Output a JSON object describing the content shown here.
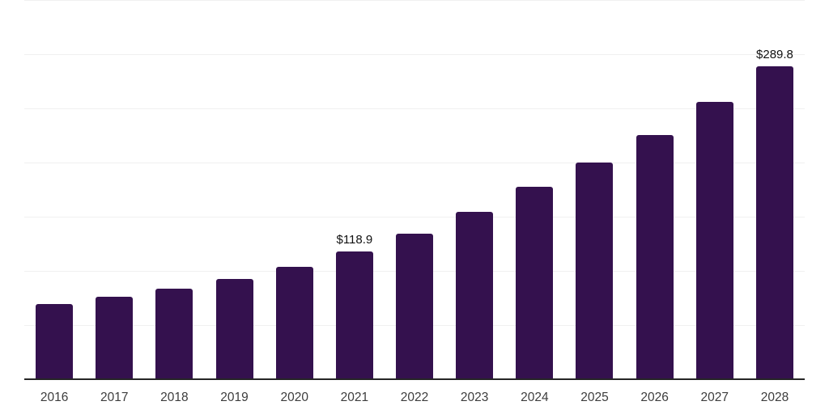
{
  "chart_data": {
    "type": "bar",
    "title": "",
    "xlabel": "",
    "ylabel": "",
    "categories": [
      "2016",
      "2017",
      "2018",
      "2019",
      "2020",
      "2021",
      "2022",
      "2023",
      "2024",
      "2025",
      "2026",
      "2027",
      "2028"
    ],
    "values": [
      70.1,
      76.8,
      84.3,
      93.0,
      104.2,
      118.9,
      135.0,
      155.0,
      178.1,
      200.5,
      226.1,
      257.1,
      289.8
    ],
    "value_labels": [
      "",
      "",
      "",
      "",
      "",
      "$118.9",
      "",
      "",
      "",
      "",
      "",
      "",
      "$289.8"
    ],
    "ylim": [
      0,
      350
    ],
    "gridline_step": 50,
    "grid": true,
    "legend": false,
    "y_axis_tick_labels_visible": false,
    "bar_color": "#34114e",
    "axis_line_color": "#262626",
    "gridline_color": "#f0f0f0",
    "tick_label_color": "#3d3d3d",
    "value_label_color": "#111111",
    "background_color": "#ffffff"
  }
}
